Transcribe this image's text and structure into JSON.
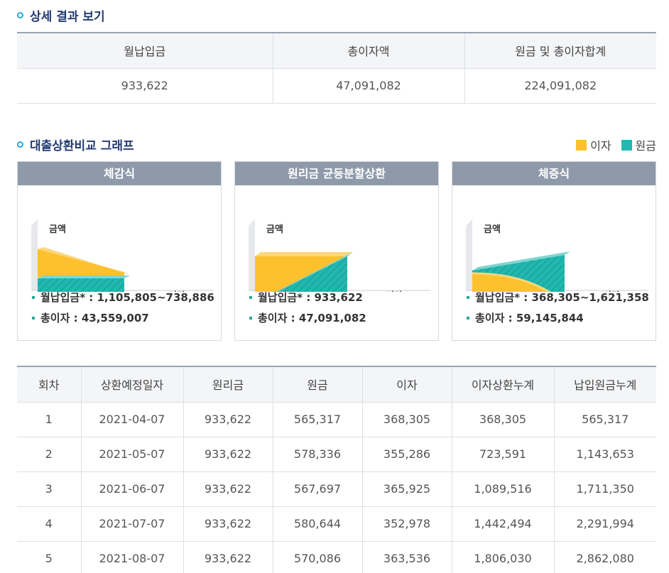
{
  "result_section": {
    "title": "상세 결과 보기",
    "headers": [
      "월납입금",
      "총이자액",
      "원금 및 총이자합계"
    ],
    "values": [
      "933,622",
      "47,091,082",
      "224,091,082"
    ]
  },
  "graph_section": {
    "title": "대출상환비교 그래프",
    "legend": {
      "interest_label": "이자",
      "principal_label": "원금"
    },
    "colors": {
      "interest": "#fcc12d",
      "principal": "#22b8b0",
      "header": "#8e9aaa",
      "title": "#233a72"
    },
    "cards": [
      {
        "title": "체감식",
        "y_label": "금액",
        "x_label": "기간",
        "monthly": "월납입금* : 1,105,805~738,886",
        "total_interest": "총이자 : 43,559,007"
      },
      {
        "title": "원리금 균등분할상환",
        "y_label": "금액",
        "x_label": "기간",
        "monthly": "월납입금* : 933,622",
        "total_interest": "총이자 : 47,091,082"
      },
      {
        "title": "체증식",
        "y_label": "금액",
        "x_label": "기간",
        "monthly": "월납입금* : 368,305~1,621,358",
        "total_interest": "총이자 : 59,145,844"
      }
    ]
  },
  "schedule": {
    "headers": [
      "회차",
      "상환예정일자",
      "원리금",
      "원금",
      "이자",
      "이자상환누계",
      "납입원금누계"
    ],
    "rows": [
      [
        "1",
        "2021-04-07",
        "933,622",
        "565,317",
        "368,305",
        "368,305",
        "565,317"
      ],
      [
        "2",
        "2021-05-07",
        "933,622",
        "578,336",
        "355,286",
        "723,591",
        "1,143,653"
      ],
      [
        "3",
        "2021-06-07",
        "933,622",
        "567,697",
        "365,925",
        "1,089,516",
        "1,711,350"
      ],
      [
        "4",
        "2021-07-07",
        "933,622",
        "580,644",
        "352,978",
        "1,442,494",
        "2,291,994"
      ],
      [
        "5",
        "2021-08-07",
        "933,622",
        "570,086",
        "363,536",
        "1,806,030",
        "2,862,080"
      ]
    ]
  }
}
